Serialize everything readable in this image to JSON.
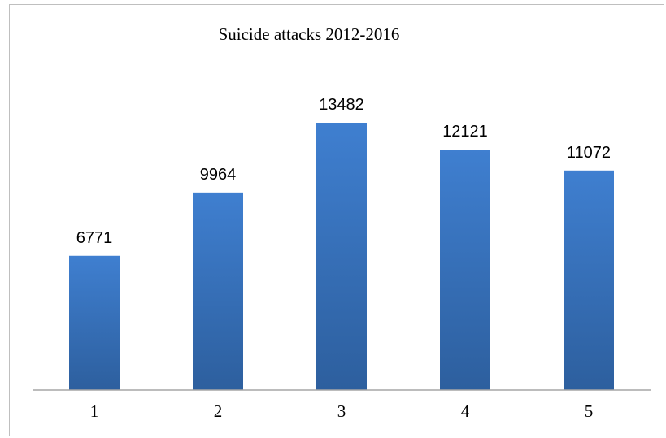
{
  "chart_data": {
    "type": "bar",
    "title": "Suicide attacks 2012-2016",
    "categories": [
      "1",
      "2",
      "3",
      "4",
      "5"
    ],
    "values": [
      6771,
      9964,
      13482,
      12121,
      11072
    ],
    "data_labels": [
      "6771",
      "9964",
      "13482",
      "12121",
      "11072"
    ],
    "xlabel": "",
    "ylabel": "",
    "ylim": [
      0,
      16000
    ],
    "grid": false,
    "legend": "none",
    "colors": {
      "bar_light": "#3f7fd0",
      "bar_dark": "#2d5f9e",
      "axis": "#a6a6a6"
    }
  }
}
